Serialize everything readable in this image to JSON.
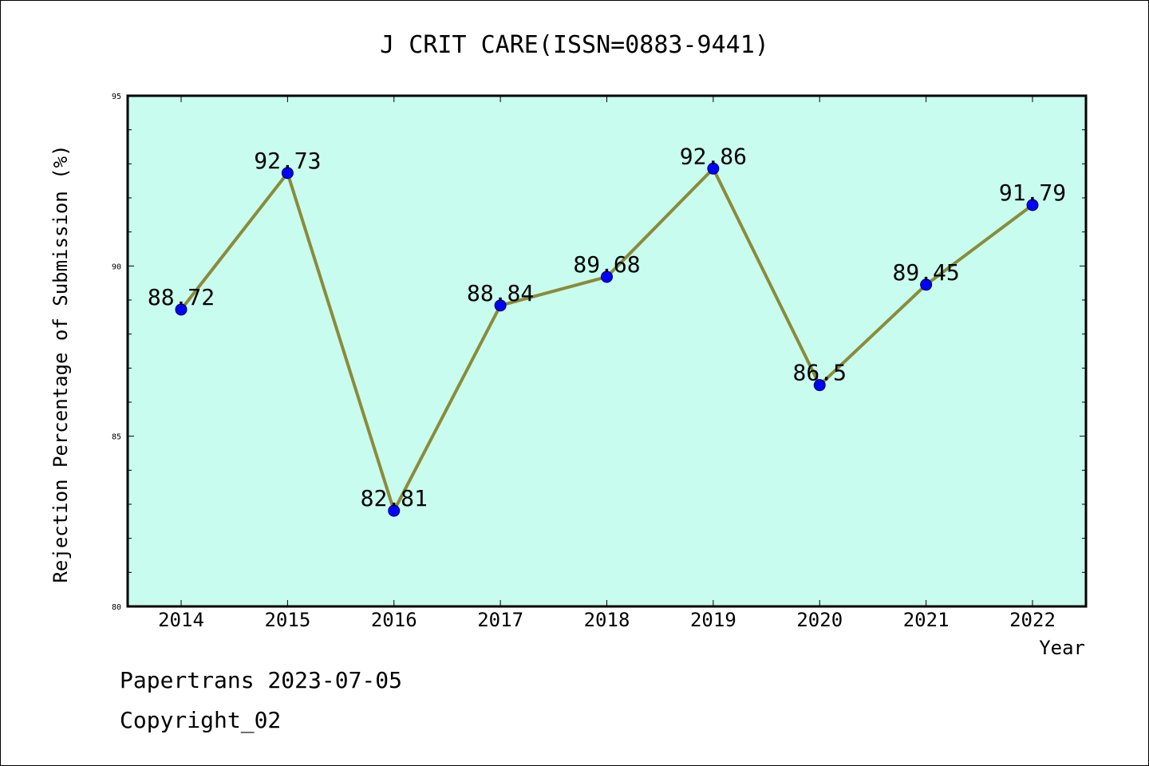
{
  "chart_data": {
    "type": "line",
    "title": "J CRIT CARE(ISSN=0883-9441)",
    "xlabel": "Year",
    "ylabel": "Rejection Percentage of Submission (%)",
    "categories": [
      "2014",
      "2015",
      "2016",
      "2017",
      "2018",
      "2019",
      "2020",
      "2021",
      "2022"
    ],
    "series": [
      {
        "values": [
          88.72,
          92.73,
          82.81,
          88.84,
          89.68,
          92.86,
          86.5,
          89.45,
          91.79
        ],
        "data_labels": [
          "88.72",
          "92.73",
          "82.81",
          "88.84",
          "89.68",
          "92.86",
          "86.5",
          "89.45",
          "91.79"
        ],
        "line_color": "#8B8B3A",
        "marker_color": "#0000FF"
      }
    ],
    "ylim": [
      80,
      95
    ],
    "yticks": [
      "80",
      "85",
      "90",
      "95"
    ],
    "plot_background": "#C8FCEE",
    "grid": false
  },
  "footer": {
    "line1": "Papertrans 2023-07-05",
    "line2": "Copyright_02"
  }
}
